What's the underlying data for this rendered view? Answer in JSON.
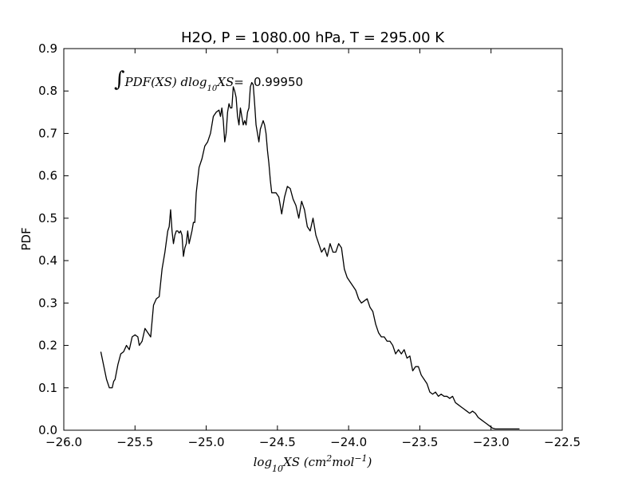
{
  "chart_data": {
    "type": "line",
    "title": "H2O, P = 1080.00 hPa, T = 295.00 K",
    "xlabel": "log10XS (cm2mol-1)",
    "ylabel": "PDF",
    "xlim": [
      -26.0,
      -22.5
    ],
    "ylim": [
      0.0,
      0.9
    ],
    "xticks": [
      "−26.0",
      "−25.5",
      "−25.0",
      "−24.5",
      "−24.0",
      "−23.5",
      "−23.0",
      "−22.5"
    ],
    "xtick_values": [
      -26.0,
      -25.5,
      -25.0,
      -24.5,
      -24.0,
      -23.5,
      -23.0,
      -22.5
    ],
    "yticks": [
      "0.0",
      "0.1",
      "0.2",
      "0.3",
      "0.4",
      "0.5",
      "0.6",
      "0.7",
      "0.8",
      "0.9"
    ],
    "ytick_values": [
      0.0,
      0.1,
      0.2,
      0.3,
      0.4,
      0.5,
      0.6,
      0.7,
      0.8,
      0.9
    ],
    "grid": false,
    "annotation": {
      "expression": "∫PDF(XS) dlog10XS =",
      "value": "0.99950"
    },
    "series": [
      {
        "color": "#000000",
        "x": [
          -25.74,
          -25.7,
          -25.68,
          -25.66,
          -25.65,
          -25.64,
          -25.62,
          -25.6,
          -25.58,
          -25.56,
          -25.54,
          -25.52,
          -25.5,
          -25.48,
          -25.47,
          -25.45,
          -25.43,
          -25.41,
          -25.39,
          -25.37,
          -25.35,
          -25.33,
          -25.31,
          -25.29,
          -25.27,
          -25.26,
          -25.25,
          -25.24,
          -25.23,
          -25.22,
          -25.21,
          -25.2,
          -25.19,
          -25.18,
          -25.17,
          -25.16,
          -25.15,
          -25.14,
          -25.13,
          -25.12,
          -25.1,
          -25.09,
          -25.08,
          -25.07,
          -25.05,
          -25.03,
          -25.01,
          -24.99,
          -24.97,
          -24.95,
          -24.93,
          -24.91,
          -24.9,
          -24.89,
          -24.88,
          -24.87,
          -24.86,
          -24.85,
          -24.84,
          -24.83,
          -24.82,
          -24.81,
          -24.8,
          -24.79,
          -24.78,
          -24.77,
          -24.76,
          -24.75,
          -24.74,
          -24.73,
          -24.72,
          -24.71,
          -24.7,
          -24.69,
          -24.68,
          -24.67,
          -24.66,
          -24.65,
          -24.64,
          -24.63,
          -24.62,
          -24.61,
          -24.6,
          -24.59,
          -24.58,
          -24.57,
          -24.56,
          -24.55,
          -24.54,
          -24.53,
          -24.51,
          -24.49,
          -24.47,
          -24.45,
          -24.43,
          -24.41,
          -24.39,
          -24.37,
          -24.35,
          -24.33,
          -24.31,
          -24.29,
          -24.27,
          -24.25,
          -24.23,
          -24.21,
          -24.19,
          -24.17,
          -24.15,
          -24.13,
          -24.11,
          -24.09,
          -24.07,
          -24.05,
          -24.03,
          -24.01,
          -23.99,
          -23.97,
          -23.95,
          -23.93,
          -23.91,
          -23.89,
          -23.87,
          -23.85,
          -23.83,
          -23.81,
          -23.79,
          -23.77,
          -23.75,
          -23.73,
          -23.71,
          -23.69,
          -23.67,
          -23.65,
          -23.63,
          -23.61,
          -23.59,
          -23.57,
          -23.55,
          -23.53,
          -23.51,
          -23.49,
          -23.47,
          -23.45,
          -23.43,
          -23.41,
          -23.39,
          -23.37,
          -23.35,
          -23.33,
          -23.31,
          -23.29,
          -23.27,
          -23.25,
          -23.23,
          -23.21,
          -23.19,
          -23.17,
          -23.15,
          -23.13,
          -23.11,
          -23.09,
          -23.07,
          -23.05,
          -23.03,
          -23.01,
          -22.99,
          -22.97,
          -22.95,
          -22.8
        ],
        "y": [
          0.185,
          0.12,
          0.1,
          0.1,
          0.115,
          0.12,
          0.155,
          0.18,
          0.185,
          0.2,
          0.19,
          0.22,
          0.225,
          0.22,
          0.2,
          0.21,
          0.24,
          0.23,
          0.22,
          0.295,
          0.31,
          0.315,
          0.38,
          0.42,
          0.47,
          0.48,
          0.52,
          0.47,
          0.44,
          0.46,
          0.47,
          0.47,
          0.465,
          0.47,
          0.46,
          0.41,
          0.43,
          0.44,
          0.47,
          0.44,
          0.47,
          0.49,
          0.49,
          0.56,
          0.62,
          0.64,
          0.67,
          0.68,
          0.7,
          0.74,
          0.75,
          0.755,
          0.74,
          0.76,
          0.73,
          0.68,
          0.7,
          0.75,
          0.77,
          0.76,
          0.76,
          0.81,
          0.8,
          0.785,
          0.74,
          0.72,
          0.76,
          0.74,
          0.72,
          0.73,
          0.72,
          0.75,
          0.76,
          0.81,
          0.82,
          0.815,
          0.77,
          0.72,
          0.7,
          0.68,
          0.71,
          0.72,
          0.73,
          0.72,
          0.7,
          0.66,
          0.63,
          0.59,
          0.56,
          0.56,
          0.56,
          0.55,
          0.51,
          0.55,
          0.575,
          0.57,
          0.545,
          0.53,
          0.5,
          0.54,
          0.52,
          0.48,
          0.47,
          0.5,
          0.46,
          0.44,
          0.42,
          0.43,
          0.41,
          0.44,
          0.42,
          0.42,
          0.44,
          0.43,
          0.38,
          0.36,
          0.35,
          0.34,
          0.33,
          0.31,
          0.3,
          0.305,
          0.31,
          0.29,
          0.28,
          0.25,
          0.23,
          0.22,
          0.22,
          0.21,
          0.21,
          0.2,
          0.18,
          0.19,
          0.18,
          0.19,
          0.17,
          0.175,
          0.14,
          0.15,
          0.15,
          0.13,
          0.12,
          0.11,
          0.09,
          0.085,
          0.09,
          0.08,
          0.085,
          0.08,
          0.08,
          0.075,
          0.08,
          0.065,
          0.06,
          0.055,
          0.05,
          0.045,
          0.04,
          0.045,
          0.04,
          0.03,
          0.025,
          0.02,
          0.015,
          0.01,
          0.005,
          0.003,
          0.003,
          0.003
        ]
      }
    ]
  }
}
